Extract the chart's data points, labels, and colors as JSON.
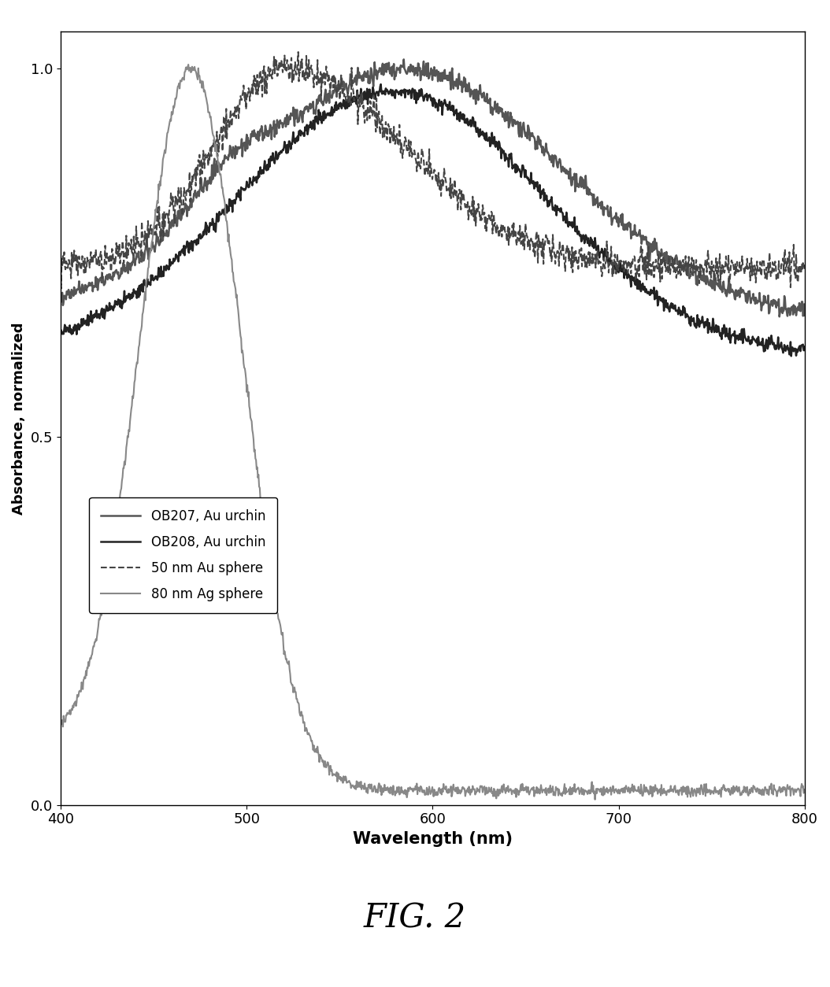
{
  "title": "",
  "xlabel": "Wavelength (nm)",
  "ylabel": "Absorbance, normalized",
  "fig_caption": "FIG. 2",
  "xlim": [
    400,
    800
  ],
  "ylim": [
    0,
    1.05
  ],
  "yticks": [
    0,
    0.5,
    1
  ],
  "xticks": [
    400,
    500,
    600,
    700,
    800
  ],
  "background_color": "#ffffff",
  "legend_entries": [
    {
      "label": "OB207, Au urchin",
      "color": "#555555",
      "linestyle": "solid",
      "linewidth": 1.8
    },
    {
      "label": "OB208, Au urchin",
      "color": "#222222",
      "linestyle": "solid",
      "linewidth": 1.8
    },
    {
      "label": "- - -50 nm Au sphere",
      "color": "#444444",
      "linestyle": "dashed",
      "linewidth": 1.5
    },
    {
      "label": "80 nm Ag sphere",
      "color": "#888888",
      "linestyle": "solid",
      "linewidth": 1.5
    }
  ]
}
